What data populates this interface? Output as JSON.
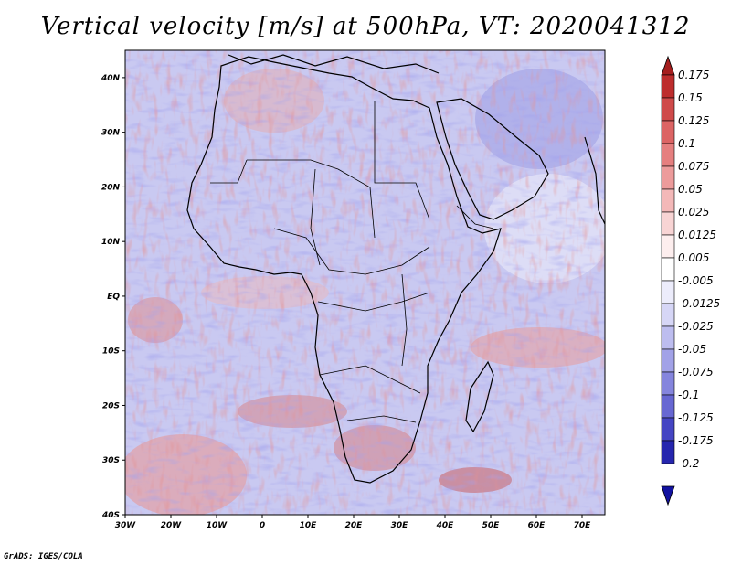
{
  "title": "Vertical velocity [m/s] at 500hPa, VT: 2020041312",
  "credit": "GrADS: IGES/COLA",
  "map": {
    "lon_range": [
      -30,
      75
    ],
    "lat_range": [
      -40,
      45
    ],
    "lat_ticks": [
      "40N",
      "30N",
      "20N",
      "10N",
      "EQ",
      "10S",
      "20S",
      "30S",
      "40S"
    ],
    "lon_ticks": [
      "30W",
      "20W",
      "10W",
      "0",
      "10E",
      "20E",
      "30E",
      "40E",
      "50E",
      "60E",
      "70E"
    ]
  },
  "colorbar": {
    "levels": [
      "0.175",
      "0.15",
      "0.125",
      "0.1",
      "0.075",
      "0.05",
      "0.025",
      "0.0125",
      "0.005",
      "-0.005",
      "-0.0125",
      "-0.025",
      "-0.05",
      "-0.075",
      "-0.1",
      "-0.125",
      "-0.175",
      "-0.2"
    ],
    "colors": [
      "#a51e1e",
      "#bd2d2d",
      "#cf4a4a",
      "#dc6464",
      "#e57f7f",
      "#ec9b9b",
      "#f3b8b8",
      "#f8d4d4",
      "#fdeeee",
      "#ffffff",
      "#ececfb",
      "#d6d6f6",
      "#bdbdef",
      "#a2a2e7",
      "#8585dd",
      "#6767d2",
      "#4545c3",
      "#2626ae",
      "#1212a0"
    ]
  }
}
